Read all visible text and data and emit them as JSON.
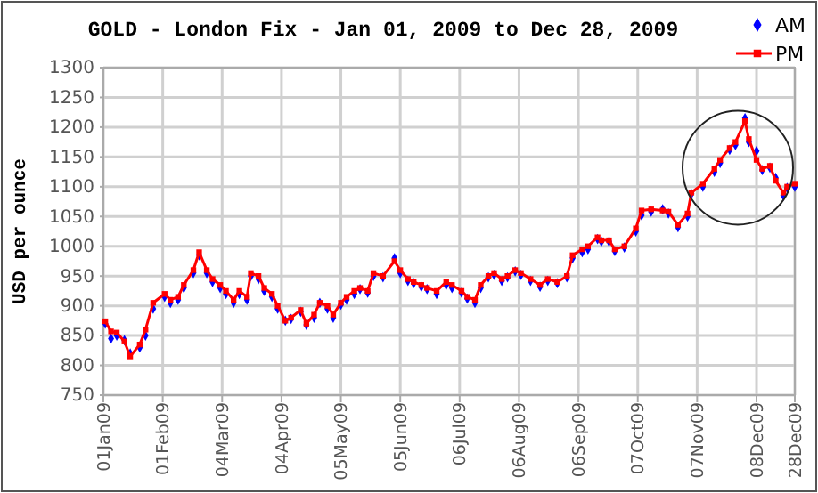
{
  "chart_data": {
    "type": "line",
    "title": "GOLD - London Fix - Jan 01, 2009 to Dec 28, 2009",
    "ylabel": "USD per ounce",
    "x": [
      "2009-01-02",
      "2009-01-05",
      "2009-01-08",
      "2009-01-12",
      "2009-01-15",
      "2009-01-20",
      "2009-01-23",
      "2009-01-27",
      "2009-02-02",
      "2009-02-05",
      "2009-02-09",
      "2009-02-12",
      "2009-02-17",
      "2009-02-20",
      "2009-02-24",
      "2009-02-27",
      "2009-03-03",
      "2009-03-06",
      "2009-03-10",
      "2009-03-13",
      "2009-03-17",
      "2009-03-19",
      "2009-03-23",
      "2009-03-26",
      "2009-03-30",
      "2009-04-02",
      "2009-04-06",
      "2009-04-09",
      "2009-04-14",
      "2009-04-17",
      "2009-04-21",
      "2009-04-24",
      "2009-04-28",
      "2009-05-01",
      "2009-05-05",
      "2009-05-08",
      "2009-05-12",
      "2009-05-15",
      "2009-05-19",
      "2009-05-22",
      "2009-05-27",
      "2009-06-02",
      "2009-06-05",
      "2009-06-09",
      "2009-06-12",
      "2009-06-16",
      "2009-06-19",
      "2009-06-24",
      "2009-06-29",
      "2009-07-02",
      "2009-07-07",
      "2009-07-10",
      "2009-07-14",
      "2009-07-17",
      "2009-07-21",
      "2009-07-24",
      "2009-07-28",
      "2009-07-31",
      "2009-08-04",
      "2009-08-07",
      "2009-08-12",
      "2009-08-17",
      "2009-08-21",
      "2009-08-26",
      "2009-08-31",
      "2009-09-03",
      "2009-09-08",
      "2009-09-11",
      "2009-09-16",
      "2009-09-18",
      "2009-09-22",
      "2009-09-25",
      "2009-09-30",
      "2009-10-06",
      "2009-10-09",
      "2009-10-14",
      "2009-10-20",
      "2009-10-23",
      "2009-10-28",
      "2009-11-02",
      "2009-11-04",
      "2009-11-10",
      "2009-11-16",
      "2009-11-19",
      "2009-11-24",
      "2009-11-27",
      "2009-12-02",
      "2009-12-04",
      "2009-12-08",
      "2009-12-11",
      "2009-12-15",
      "2009-12-18",
      "2009-12-22",
      "2009-12-24",
      "2009-12-28"
    ],
    "xlim": [
      "2009-01-01",
      "2009-12-28"
    ],
    "xticks": [
      {
        "value": "2009-01-01",
        "label": "01Jan09"
      },
      {
        "value": "2009-02-01",
        "label": "01Feb09"
      },
      {
        "value": "2009-03-04",
        "label": "04Mar09"
      },
      {
        "value": "2009-04-04",
        "label": "04Apr09"
      },
      {
        "value": "2009-05-05",
        "label": "05May09"
      },
      {
        "value": "2009-06-05",
        "label": "05Jun09"
      },
      {
        "value": "2009-07-06",
        "label": "06Jul09"
      },
      {
        "value": "2009-08-06",
        "label": "06Aug09"
      },
      {
        "value": "2009-09-06",
        "label": "06Sep09"
      },
      {
        "value": "2009-10-07",
        "label": "07Oct09"
      },
      {
        "value": "2009-11-07",
        "label": "07Nov09"
      },
      {
        "value": "2009-12-08",
        "label": "08Dec09"
      },
      {
        "value": "2009-12-28",
        "label": "28Dec09"
      }
    ],
    "ylim": [
      750,
      1300
    ],
    "yticks": [
      750,
      800,
      850,
      900,
      950,
      1000,
      1050,
      1100,
      1150,
      1200,
      1250,
      1300
    ],
    "grid": true,
    "legend": "top right",
    "series": [
      {
        "name": "AM",
        "type": "scatter",
        "marker": "diamond",
        "color": "#0000ff",
        "values": [
          870,
          845,
          850,
          842,
          820,
          830,
          850,
          895,
          915,
          905,
          910,
          930,
          955,
          985,
          955,
          940,
          930,
          920,
          905,
          920,
          910,
          950,
          945,
          925,
          915,
          895,
          875,
          878,
          890,
          868,
          880,
          905,
          895,
          880,
          902,
          910,
          920,
          928,
          922,
          950,
          948,
          980,
          955,
          942,
          938,
          932,
          928,
          920,
          935,
          930,
          922,
          912,
          905,
          930,
          948,
          952,
          942,
          948,
          958,
          952,
          942,
          932,
          942,
          938,
          948,
          980,
          990,
          995,
          1012,
          1008,
          1008,
          992,
          998,
          1025,
          1052,
          1058,
          1062,
          1055,
          1032,
          1050,
          1088,
          1100,
          1125,
          1140,
          1162,
          1170,
          1215,
          1175,
          1160,
          1128,
          1132,
          1115,
          1085,
          1098,
          1100
        ]
      },
      {
        "name": "PM",
        "type": "line",
        "marker": "square",
        "color": "#ff0000",
        "values": [
          874,
          857,
          855,
          840,
          815,
          835,
          860,
          905,
          920,
          910,
          915,
          935,
          960,
          990,
          960,
          945,
          935,
          925,
          910,
          925,
          915,
          955,
          950,
          930,
          920,
          900,
          875,
          880,
          893,
          870,
          885,
          905,
          900,
          885,
          905,
          915,
          925,
          930,
          925,
          955,
          950,
          975,
          960,
          945,
          940,
          935,
          930,
          925,
          940,
          935,
          925,
          915,
          910,
          935,
          950,
          955,
          945,
          950,
          960,
          955,
          945,
          935,
          945,
          940,
          950,
          985,
          995,
          1000,
          1015,
          1010,
          1010,
          995,
          1000,
          1030,
          1060,
          1062,
          1060,
          1058,
          1036,
          1055,
          1090,
          1105,
          1130,
          1145,
          1165,
          1175,
          1210,
          1180,
          1145,
          1130,
          1135,
          1110,
          1090,
          1100,
          1105
        ]
      }
    ]
  }
}
